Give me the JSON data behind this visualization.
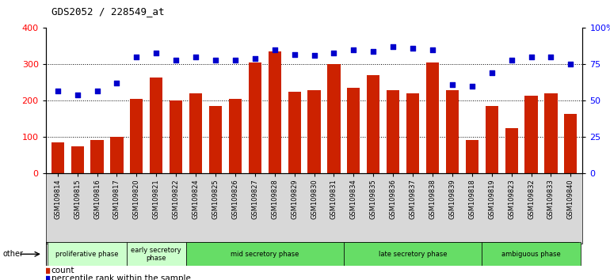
{
  "title": "GDS2052 / 228549_at",
  "samples": [
    "GSM109814",
    "GSM109815",
    "GSM109816",
    "GSM109817",
    "GSM109820",
    "GSM109821",
    "GSM109822",
    "GSM109824",
    "GSM109825",
    "GSM109826",
    "GSM109827",
    "GSM109828",
    "GSM109829",
    "GSM109830",
    "GSM109831",
    "GSM109834",
    "GSM109835",
    "GSM109836",
    "GSM109837",
    "GSM109838",
    "GSM109839",
    "GSM109818",
    "GSM109819",
    "GSM109823",
    "GSM109832",
    "GSM109833",
    "GSM109840"
  ],
  "counts": [
    85,
    75,
    92,
    100,
    205,
    265,
    200,
    220,
    185,
    205,
    305,
    335,
    225,
    230,
    300,
    235,
    270,
    230,
    220,
    305,
    230,
    92,
    185,
    125,
    215,
    220,
    165
  ],
  "percentiles_pct": [
    57,
    54,
    57,
    62,
    80,
    83,
    78,
    80,
    78,
    78,
    79,
    85,
    82,
    81,
    83,
    85,
    84,
    87,
    86,
    85,
    61,
    60,
    69,
    78,
    80,
    80,
    75
  ],
  "phases": [
    {
      "name": "proliferative phase",
      "start": 0,
      "end": 4,
      "color": "#ccffcc"
    },
    {
      "name": "early secretory\nphase",
      "start": 4,
      "end": 7,
      "color": "#ccffcc"
    },
    {
      "name": "mid secretory phase",
      "start": 7,
      "end": 15,
      "color": "#66dd66"
    },
    {
      "name": "late secretory phase",
      "start": 15,
      "end": 22,
      "color": "#66dd66"
    },
    {
      "name": "ambiguous phase",
      "start": 22,
      "end": 27,
      "color": "#66dd66"
    }
  ],
  "bar_color": "#cc2200",
  "dot_color": "#0000cc",
  "left_ylim": [
    0,
    400
  ],
  "left_yticks": [
    0,
    100,
    200,
    300,
    400
  ],
  "right_ytick_positions": [
    0,
    25,
    50,
    75,
    100
  ],
  "right_yticklabels": [
    "0",
    "25",
    "50",
    "75",
    "100%"
  ],
  "other_label": "other",
  "legend_count": "count",
  "legend_percentile": "percentile rank within the sample"
}
